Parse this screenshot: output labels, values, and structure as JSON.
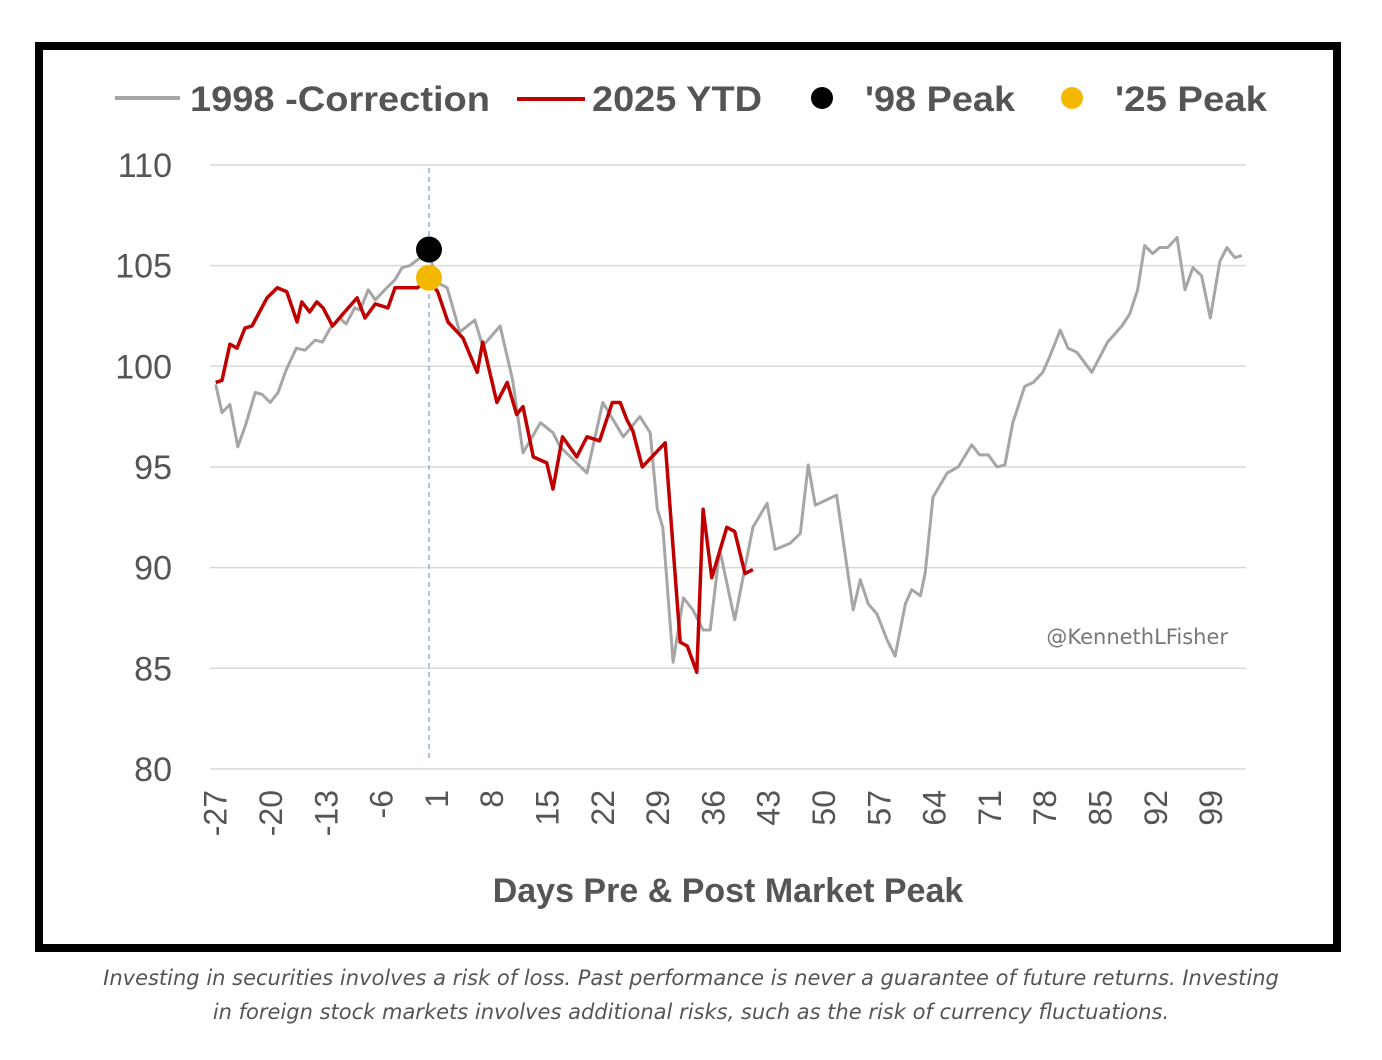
{
  "chart_data": {
    "type": "line",
    "title": "",
    "xlabel": "Days Pre & Post Market Peak",
    "ylabel": "",
    "xlim": [
      -27,
      104
    ],
    "ylim": [
      80,
      110
    ],
    "yticks": [
      "80",
      "85",
      "90",
      "95",
      "100",
      "105",
      "110"
    ],
    "xticks": [
      "-27",
      "-20",
      "-13",
      "-6",
      "1",
      "8",
      "15",
      "22",
      "29",
      "36",
      "43",
      "50",
      "57",
      "64",
      "71",
      "78",
      "85",
      "92",
      "99"
    ],
    "grid": "horizontal",
    "legend_position": "top",
    "peak_marker_day": 0,
    "series": [
      {
        "name": "1998 -Correction",
        "color": "#a6a6a6",
        "points": [
          [
            -27,
            99.1
          ],
          [
            -26.2,
            97.7
          ],
          [
            -25.2,
            98.1
          ],
          [
            -24.2,
            96.0
          ],
          [
            -23.2,
            97.1
          ],
          [
            -22.0,
            98.7
          ],
          [
            -21.1,
            98.6
          ],
          [
            -20.1,
            98.2
          ],
          [
            -19.1,
            98.7
          ],
          [
            -18.1,
            99.8
          ],
          [
            -16.8,
            100.9
          ],
          [
            -15.7,
            100.8
          ],
          [
            -14.4,
            101.3
          ],
          [
            -13.5,
            101.2
          ],
          [
            -12.5,
            101.9
          ],
          [
            -11.3,
            102.4
          ],
          [
            -10.5,
            102.1
          ],
          [
            -9.4,
            102.9
          ],
          [
            -8.7,
            102.8
          ],
          [
            -7.7,
            103.8
          ],
          [
            -6.8,
            103.3
          ],
          [
            -5.6,
            103.8
          ],
          [
            -4.3,
            104.3
          ],
          [
            -3.4,
            104.9
          ],
          [
            -2.4,
            105.0
          ],
          [
            -1.1,
            105.4
          ],
          [
            0,
            105.8
          ],
          [
            0.9,
            104.2
          ],
          [
            2.3,
            103.9
          ],
          [
            3.9,
            101.7
          ],
          [
            5.8,
            102.3
          ],
          [
            6.8,
            101.0
          ],
          [
            9.0,
            102.0
          ],
          [
            10.6,
            99.3
          ],
          [
            11.9,
            95.7
          ],
          [
            14.1,
            97.2
          ],
          [
            15.7,
            96.7
          ],
          [
            16.6,
            96.0
          ],
          [
            20.0,
            94.7
          ],
          [
            22.0,
            98.2
          ],
          [
            24.6,
            96.5
          ],
          [
            26.7,
            97.5
          ],
          [
            28.0,
            96.7
          ],
          [
            28.9,
            92.9
          ],
          [
            29.6,
            92.0
          ],
          [
            30.9,
            85.3
          ],
          [
            32.2,
            88.5
          ],
          [
            33.4,
            87.9
          ],
          [
            34.7,
            86.9
          ],
          [
            35.6,
            86.9
          ],
          [
            36.8,
            90.9
          ],
          [
            38.7,
            87.4
          ],
          [
            41.0,
            92.0
          ],
          [
            42.8,
            93.2
          ],
          [
            43.8,
            90.9
          ],
          [
            45.7,
            91.2
          ],
          [
            47.0,
            91.7
          ],
          [
            48.0,
            95.1
          ],
          [
            48.9,
            93.1
          ],
          [
            51.6,
            93.6
          ],
          [
            53.7,
            87.9
          ],
          [
            54.6,
            89.4
          ],
          [
            55.6,
            88.2
          ],
          [
            56.7,
            87.7
          ],
          [
            58.0,
            86.4
          ],
          [
            59.0,
            85.6
          ],
          [
            60.3,
            88.2
          ],
          [
            61.1,
            88.9
          ],
          [
            62.2,
            88.6
          ],
          [
            62.8,
            89.7
          ],
          [
            63.8,
            93.5
          ],
          [
            65.6,
            94.7
          ],
          [
            67.0,
            95.0
          ],
          [
            68.7,
            96.1
          ],
          [
            69.7,
            95.6
          ],
          [
            70.8,
            95.6
          ],
          [
            71.9,
            95.0
          ],
          [
            72.9,
            95.1
          ],
          [
            73.9,
            97.2
          ],
          [
            75.4,
            99.0
          ],
          [
            76.5,
            99.2
          ],
          [
            77.7,
            99.7
          ],
          [
            78.6,
            100.5
          ],
          [
            79.9,
            101.8
          ],
          [
            80.9,
            100.9
          ],
          [
            82.0,
            100.7
          ],
          [
            83.9,
            99.7
          ],
          [
            85.9,
            101.2
          ],
          [
            87.7,
            102.0
          ],
          [
            88.7,
            102.6
          ],
          [
            89.7,
            103.8
          ],
          [
            90.6,
            106.0
          ],
          [
            91.6,
            105.6
          ],
          [
            92.5,
            105.9
          ],
          [
            93.5,
            105.9
          ],
          [
            94.7,
            106.4
          ],
          [
            95.7,
            103.8
          ],
          [
            96.7,
            104.9
          ],
          [
            97.8,
            104.5
          ],
          [
            98.9,
            102.4
          ],
          [
            100.1,
            105.2
          ],
          [
            101.0,
            105.9
          ],
          [
            102.0,
            105.4
          ],
          [
            102.9,
            105.5
          ]
        ]
      },
      {
        "name": "2025 YTD",
        "color": "#c00000",
        "points": [
          [
            -27,
            99.2
          ],
          [
            -26.2,
            99.3
          ],
          [
            -25.2,
            101.1
          ],
          [
            -24.3,
            100.9
          ],
          [
            -23.3,
            101.9
          ],
          [
            -22.4,
            102.0
          ],
          [
            -20.5,
            103.4
          ],
          [
            -19.2,
            103.9
          ],
          [
            -18.0,
            103.7
          ],
          [
            -16.7,
            102.2
          ],
          [
            -16.1,
            103.2
          ],
          [
            -15.1,
            102.7
          ],
          [
            -14.2,
            103.2
          ],
          [
            -13.4,
            102.9
          ],
          [
            -12.2,
            102.0
          ],
          [
            -10.9,
            102.6
          ],
          [
            -9.1,
            103.4
          ],
          [
            -8.1,
            102.4
          ],
          [
            -6.8,
            103.1
          ],
          [
            -5.2,
            102.9
          ],
          [
            -4.3,
            103.9
          ],
          [
            -1.5,
            103.9
          ],
          [
            0,
            104.3
          ],
          [
            1.1,
            103.7
          ],
          [
            2.4,
            102.2
          ],
          [
            4.3,
            101.4
          ],
          [
            6.1,
            99.7
          ],
          [
            6.8,
            101.2
          ],
          [
            8.6,
            98.2
          ],
          [
            9.9,
            99.2
          ],
          [
            11.1,
            97.6
          ],
          [
            11.9,
            98.0
          ],
          [
            13.2,
            95.5
          ],
          [
            14.9,
            95.2
          ],
          [
            15.7,
            93.9
          ],
          [
            16.9,
            96.5
          ],
          [
            18.7,
            95.5
          ],
          [
            20.0,
            96.5
          ],
          [
            21.6,
            96.3
          ],
          [
            23.2,
            98.2
          ],
          [
            24.2,
            98.2
          ],
          [
            25.1,
            97.3
          ],
          [
            25.8,
            96.8
          ],
          [
            27.0,
            95.0
          ],
          [
            29.9,
            96.2
          ],
          [
            31.8,
            86.3
          ],
          [
            32.7,
            86.1
          ],
          [
            33.9,
            84.8
          ],
          [
            34.7,
            92.9
          ],
          [
            35.8,
            89.5
          ],
          [
            37.7,
            92.0
          ],
          [
            38.7,
            91.8
          ],
          [
            40.0,
            89.7
          ],
          [
            41.0,
            89.9
          ]
        ]
      }
    ],
    "markers": [
      {
        "name": "'98 Peak",
        "color": "#000000",
        "x": 0,
        "y": 105.8
      },
      {
        "name": "'25 Peak",
        "color": "#f5b800",
        "x": 0,
        "y": 104.4
      }
    ]
  },
  "watermark": "@KennethLFisher",
  "caption": {
    "line1": "Investing in securities involves a risk of loss. Past performance is never a guarantee of future returns. Investing",
    "line2": "in foreign stock markets involves additional risks, such as the risk of currency fluctuations."
  }
}
